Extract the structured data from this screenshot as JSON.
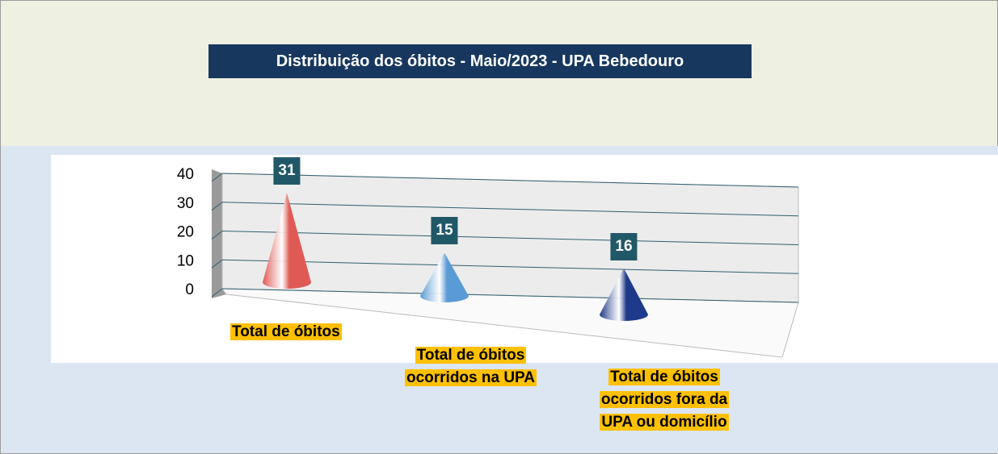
{
  "chart_data": {
    "type": "cone3d",
    "title": "Distribuição dos óbitos - Maio/2023 - UPA Bebedouro",
    "categories": [
      "Total de óbitos",
      "Total de óbitos ocorridos na UPA",
      "Total de óbitos ocorridos fora da UPA ou domicílio"
    ],
    "values": [
      31,
      15,
      16
    ],
    "colors": [
      "#e05a55",
      "#5b9bd5",
      "#1f3a8a"
    ],
    "ylim": [
      0,
      40
    ],
    "yticks": [
      0,
      10,
      20,
      30,
      40
    ],
    "grid": true
  }
}
